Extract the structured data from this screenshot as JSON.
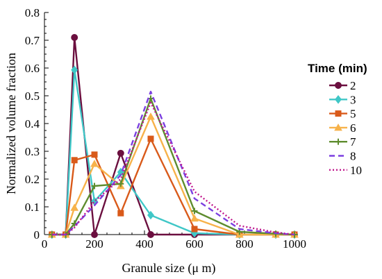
{
  "chart_data": {
    "type": "line",
    "xlabel": "Granule size (μ m)",
    "ylabel": "Normalized volume fraction",
    "xlim": [
      0,
      1000
    ],
    "ylim": [
      0,
      0.8
    ],
    "xticks": [
      0,
      200,
      400,
      600,
      800,
      1000
    ],
    "yticks": [
      0,
      0.1,
      0.2,
      0.3,
      0.4,
      0.5,
      0.6,
      0.7,
      0.8
    ],
    "ytick_labels": [
      "0",
      "0.1",
      "0.2",
      "0.3",
      "0.4",
      "0.5",
      "0.6",
      "0.7",
      "0.8"
    ],
    "grid": false,
    "legend": {
      "title": "Time (min)",
      "placement": "right"
    },
    "series": [
      {
        "name": "2",
        "color": "#6b0f3f",
        "marker": "circle",
        "dash": "solid",
        "x": [
          30,
          85,
          120,
          200,
          305,
          425,
          600,
          780,
          925,
          1000
        ],
        "y": [
          0,
          0,
          0.71,
          0,
          0.293,
          0,
          0,
          0,
          0,
          0
        ]
      },
      {
        "name": "3",
        "color": "#3fc7c7",
        "marker": "diamond",
        "dash": "solid",
        "x": [
          30,
          85,
          120,
          200,
          305,
          425,
          600,
          780,
          925,
          1000
        ],
        "y": [
          0,
          0,
          0.593,
          0.12,
          0.225,
          0.07,
          0.005,
          0,
          0,
          0
        ]
      },
      {
        "name": "5",
        "color": "#d95a1a",
        "marker": "square",
        "dash": "solid",
        "x": [
          30,
          85,
          120,
          200,
          305,
          425,
          600,
          780,
          925,
          1000
        ],
        "y": [
          0,
          0,
          0.268,
          0.288,
          0.077,
          0.345,
          0.02,
          0,
          0,
          0
        ]
      },
      {
        "name": "6",
        "color": "#f7b24a",
        "marker": "triangle",
        "dash": "solid",
        "x": [
          30,
          85,
          120,
          200,
          305,
          425,
          600,
          780,
          925,
          1000
        ],
        "y": [
          0,
          0,
          0.097,
          0.255,
          0.175,
          0.425,
          0.058,
          0,
          0,
          0
        ]
      },
      {
        "name": "7",
        "color": "#5e8c2e",
        "marker": "plus",
        "dash": "solid",
        "x": [
          30,
          85,
          120,
          200,
          305,
          425,
          600,
          780,
          925,
          1000
        ],
        "y": [
          0,
          0,
          0.04,
          0.175,
          0.183,
          0.49,
          0.085,
          0.01,
          0.003,
          0
        ]
      },
      {
        "name": "8",
        "color": "#7b3fe0",
        "marker": "none",
        "dash": "dashed",
        "x": [
          30,
          85,
          120,
          200,
          305,
          425,
          600,
          780,
          925,
          1000
        ],
        "y": [
          0,
          0,
          0.03,
          0.105,
          0.215,
          0.515,
          0.13,
          0.02,
          0.005,
          0
        ]
      },
      {
        "name": "10",
        "color": "#c0168c",
        "marker": "none",
        "dash": "dotted",
        "x": [
          30,
          85,
          120,
          200,
          305,
          425,
          600,
          780,
          925,
          1000
        ],
        "y": [
          0,
          0,
          0.025,
          0.12,
          0.2,
          0.475,
          0.155,
          0.032,
          0.008,
          0
        ]
      }
    ]
  }
}
